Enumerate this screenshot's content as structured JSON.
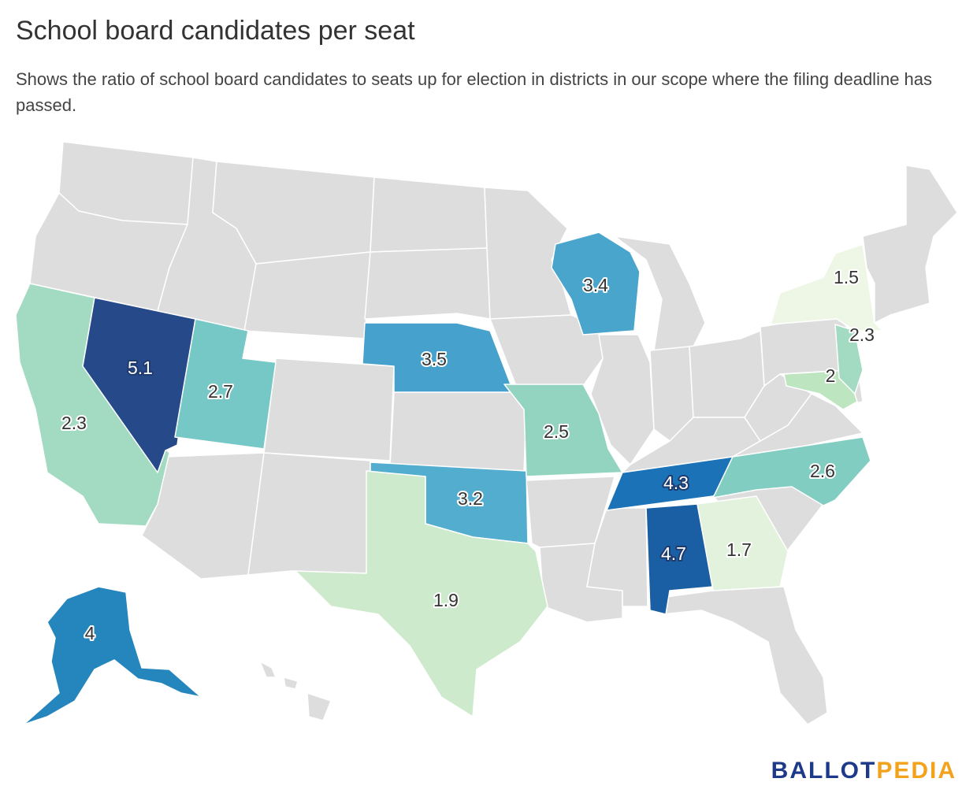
{
  "title": "School board candidates per seat",
  "subtitle": "Shows the ratio of school board candidates to seats up for election in districts in our scope where the filing deadline has passed.",
  "logo": {
    "part1": "BALLOT",
    "part2": "PEDIA"
  },
  "colors": {
    "no_data": "#dddddd",
    "border": "#ffffff"
  },
  "states": [
    {
      "id": "nv",
      "value": "5.1",
      "color": "#26498a"
    },
    {
      "id": "al",
      "value": "4.7",
      "color": "#1a5fa3"
    },
    {
      "id": "tn",
      "value": "4.3",
      "color": "#1b72b6"
    },
    {
      "id": "ak",
      "value": "4",
      "color": "#2585bd"
    },
    {
      "id": "ne",
      "value": "3.5",
      "color": "#46a2cc"
    },
    {
      "id": "wi",
      "value": "3.4",
      "color": "#4aa5cd"
    },
    {
      "id": "ok",
      "value": "3.2",
      "color": "#53adcf"
    },
    {
      "id": "ut",
      "value": "2.7",
      "color": "#76c8c6"
    },
    {
      "id": "nc",
      "value": "2.6",
      "color": "#82cdc1"
    },
    {
      "id": "mo",
      "value": "2.5",
      "color": "#93d4c0"
    },
    {
      "id": "ca",
      "value": "2.3",
      "color": "#a2dbc2"
    },
    {
      "id": "nj",
      "value": "2.3",
      "color": "#a2dbc2"
    },
    {
      "id": "md",
      "value": "2",
      "color": "#bde5c0"
    },
    {
      "id": "tx",
      "value": "1.9",
      "color": "#cdeacc"
    },
    {
      "id": "ga",
      "value": "1.7",
      "color": "#e2f2dc"
    },
    {
      "id": "ny",
      "value": "1.5",
      "color": "#eef7e6"
    }
  ]
}
